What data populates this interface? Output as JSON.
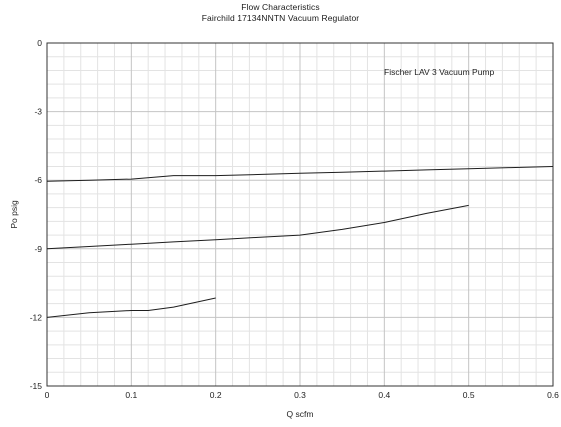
{
  "chart_data": {
    "type": "line",
    "title": "Flow Characteristics",
    "subtitle": "Fairchild 17134NNTN Vacuum Regulator",
    "xlabel": "Q scfm",
    "ylabel": "Po psig",
    "xlim": [
      0,
      0.6
    ],
    "ylim": [
      -15,
      0
    ],
    "x_ticks": [
      0,
      0.1,
      0.2,
      0.3,
      0.4,
      0.5,
      0.6
    ],
    "x_tick_labels": [
      "0",
      "0.1",
      "0.2",
      "0.3",
      "0.4",
      "0.5",
      "0.6"
    ],
    "y_ticks": [
      0,
      -3,
      -6,
      -9,
      -12,
      -15
    ],
    "y_tick_labels": [
      "0",
      "-3",
      "-6",
      "-9",
      "-12",
      "-15"
    ],
    "grid": true,
    "annotation": "Fischer LAV 3 Vacuum Pump",
    "series": [
      {
        "x": [
          0,
          0.05,
          0.1,
          0.15,
          0.2,
          0.25,
          0.3,
          0.35,
          0.4,
          0.45,
          0.5,
          0.55,
          0.6
        ],
        "y": [
          -6.05,
          -6.0,
          -5.95,
          -5.8,
          -5.8,
          -5.75,
          -5.7,
          -5.65,
          -5.6,
          -5.55,
          -5.5,
          -5.45,
          -5.4
        ]
      },
      {
        "x": [
          0,
          0.05,
          0.1,
          0.15,
          0.2,
          0.25,
          0.3,
          0.35,
          0.4,
          0.45,
          0.5
        ],
        "y": [
          -9.0,
          -8.9,
          -8.8,
          -8.7,
          -8.6,
          -8.5,
          -8.4,
          -8.15,
          -7.85,
          -7.45,
          -7.1
        ]
      },
      {
        "x": [
          0,
          0.05,
          0.1,
          0.12,
          0.15,
          0.2
        ],
        "y": [
          -12.0,
          -11.8,
          -11.7,
          -11.7,
          -11.55,
          -11.15
        ]
      }
    ]
  }
}
